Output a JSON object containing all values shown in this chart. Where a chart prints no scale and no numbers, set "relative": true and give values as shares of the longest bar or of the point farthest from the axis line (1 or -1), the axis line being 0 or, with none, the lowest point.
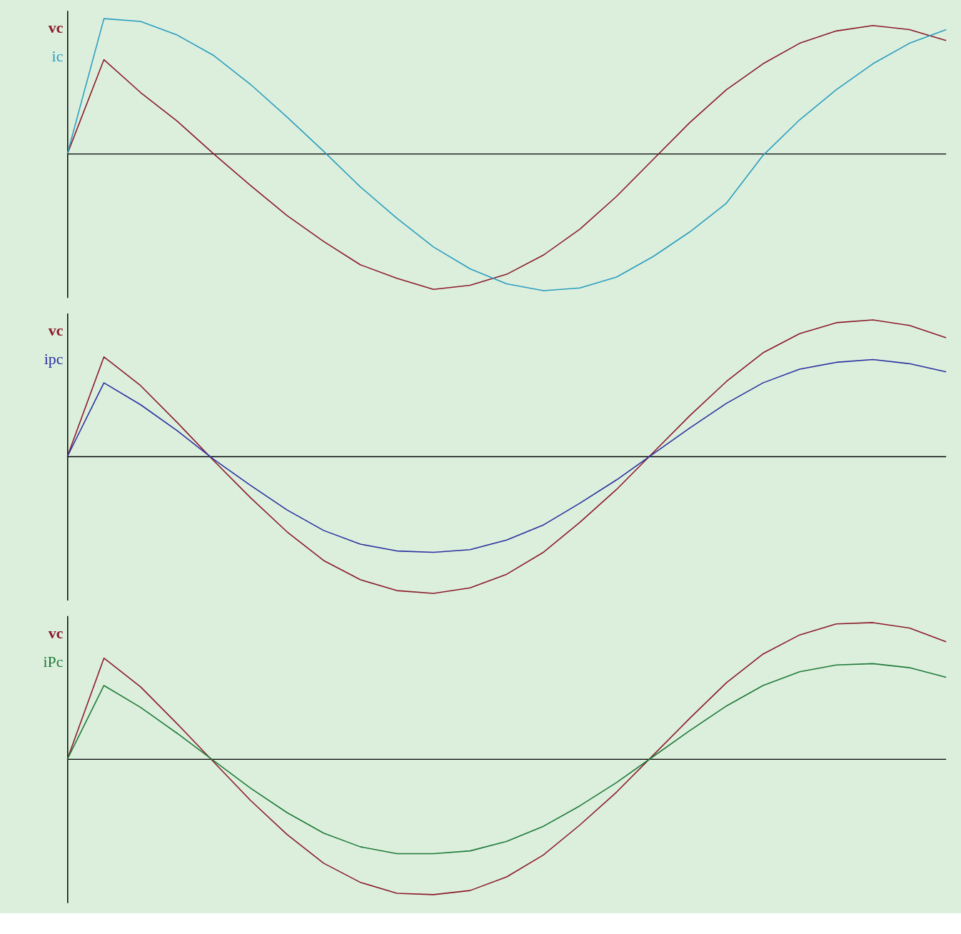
{
  "chart_data": [
    {
      "type": "line",
      "relative": true,
      "categories": [
        null,
        null,
        null,
        null,
        null,
        null,
        null,
        null,
        null,
        null,
        null,
        null,
        null,
        null,
        null,
        null,
        null,
        null,
        null,
        null,
        null,
        null,
        null,
        null,
        null
      ],
      "series": [
        {
          "name": "vc",
          "color": "#8b1a2b",
          "values": [
            0,
            0.69,
            0.45,
            0.24,
            0,
            -0.23,
            -0.45,
            -0.64,
            -0.81,
            -0.91,
            -0.99,
            -0.96,
            -0.88,
            -0.74,
            -0.55,
            -0.31,
            -0.04,
            0.23,
            0.47,
            0.66,
            0.81,
            0.9,
            0.94,
            0.91,
            0.83
          ]
        },
        {
          "name": "ic",
          "color": "#2a9dc0",
          "values": [
            0,
            0.99,
            0.97,
            0.87,
            0.72,
            0.51,
            0.27,
            0.02,
            -0.24,
            -0.47,
            -0.68,
            -0.84,
            -0.95,
            -1,
            -0.98,
            -0.9,
            -0.75,
            -0.57,
            -0.36,
            -0.01,
            0.25,
            0.47,
            0.66,
            0.81,
            0.91
          ]
        }
      ]
    },
    {
      "type": "line",
      "relative": true,
      "categories": [
        null,
        null,
        null,
        null,
        null,
        null,
        null,
        null,
        null,
        null,
        null,
        null,
        null,
        null,
        null,
        null,
        null,
        null,
        null,
        null,
        null,
        null,
        null,
        null,
        null
      ],
      "series": [
        {
          "name": "vc",
          "color": "#8b1a2b",
          "values": [
            0,
            0.73,
            0.52,
            0.25,
            -0.03,
            -0.3,
            -0.55,
            -0.76,
            -0.9,
            -0.98,
            -1,
            -0.96,
            -0.86,
            -0.7,
            -0.48,
            -0.24,
            0.03,
            0.3,
            0.55,
            0.76,
            0.9,
            0.98,
            1,
            0.96,
            0.87
          ]
        },
        {
          "name": "ipc",
          "color": "#2b2fa0",
          "values": [
            0,
            0.54,
            0.38,
            0.19,
            -0.02,
            -0.21,
            -0.39,
            -0.54,
            -0.64,
            -0.69,
            -0.7,
            -0.68,
            -0.61,
            -0.5,
            -0.34,
            -0.17,
            0.02,
            0.21,
            0.39,
            0.54,
            0.64,
            0.69,
            0.71,
            0.68,
            0.62
          ]
        }
      ]
    },
    {
      "type": "line",
      "relative": true,
      "categories": [
        null,
        null,
        null,
        null,
        null,
        null,
        null,
        null,
        null,
        null,
        null,
        null,
        null,
        null,
        null,
        null,
        null,
        null,
        null,
        null,
        null,
        null,
        null,
        null,
        null
      ],
      "series": [
        {
          "name": "vc",
          "color": "#8b1a2b",
          "values": [
            0,
            0.74,
            0.53,
            0.26,
            -0.02,
            -0.3,
            -0.55,
            -0.76,
            -0.9,
            -0.98,
            -0.99,
            -0.96,
            -0.86,
            -0.7,
            -0.48,
            -0.24,
            0.03,
            0.3,
            0.56,
            0.77,
            0.91,
            0.99,
            1,
            0.96,
            0.86
          ]
        },
        {
          "name": "iPc",
          "color": "#1e7a3a",
          "values": [
            0,
            0.54,
            0.38,
            0.19,
            -0.01,
            -0.21,
            -0.39,
            -0.54,
            -0.64,
            -0.69,
            -0.69,
            -0.67,
            -0.6,
            -0.49,
            -0.34,
            -0.17,
            0.02,
            0.21,
            0.39,
            0.54,
            0.64,
            0.69,
            0.7,
            0.67,
            0.6
          ]
        }
      ]
    }
  ]
}
